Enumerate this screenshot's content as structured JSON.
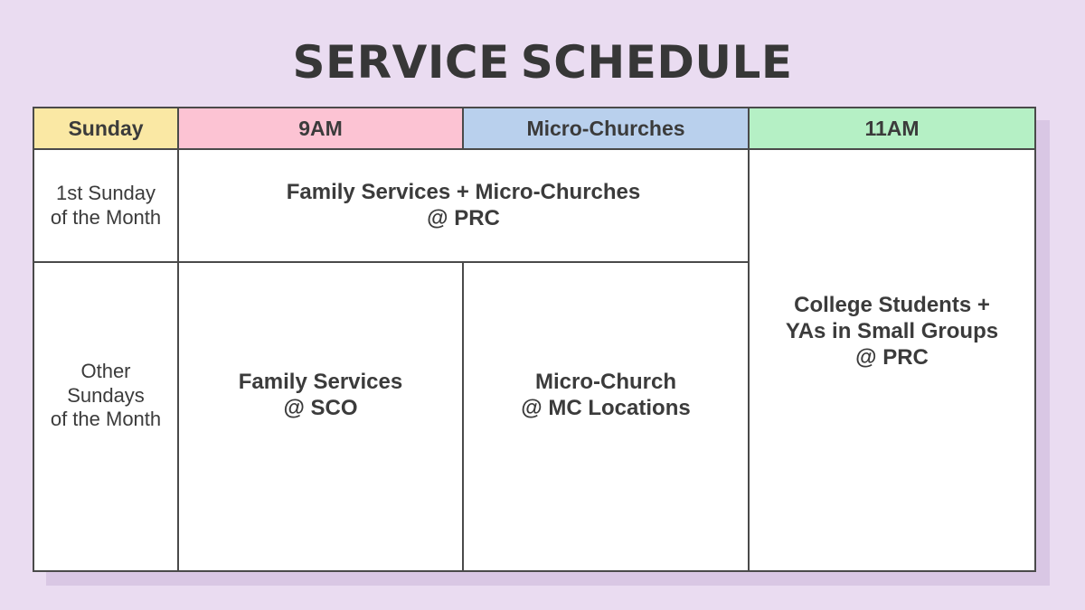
{
  "title": "SERVICE SCHEDULE",
  "colors": {
    "background": "#eadcf1",
    "card": "#ffffff",
    "border": "#4a4a4a",
    "shadow": "#d9c7e4",
    "text": "#3b3b3b",
    "header_sunday": "#fae8a4",
    "header_9am": "#fcc3d3",
    "header_micro_churches": "#b9d0ed",
    "header_11am": "#b5f0c5"
  },
  "table": {
    "headers": {
      "sunday": "Sunday",
      "nine_am": "9AM",
      "micro_churches": "Micro-Churches",
      "eleven_am": "11AM"
    },
    "row_first_sunday": {
      "label": [
        "1st Sunday",
        "of the Month"
      ],
      "family_services_micro": [
        "Family Services + Micro-Churches",
        "@ PRC"
      ]
    },
    "row_other_sundays": {
      "label": [
        "Other",
        "Sundays",
        "of the Month"
      ],
      "family_services": [
        "Family Services",
        "@ SCO"
      ],
      "micro_church": [
        "Micro-Church",
        "@ MC Locations"
      ]
    },
    "college_cell": [
      "College Students +",
      "YAs in Small Groups",
      "@ PRC"
    ]
  }
}
